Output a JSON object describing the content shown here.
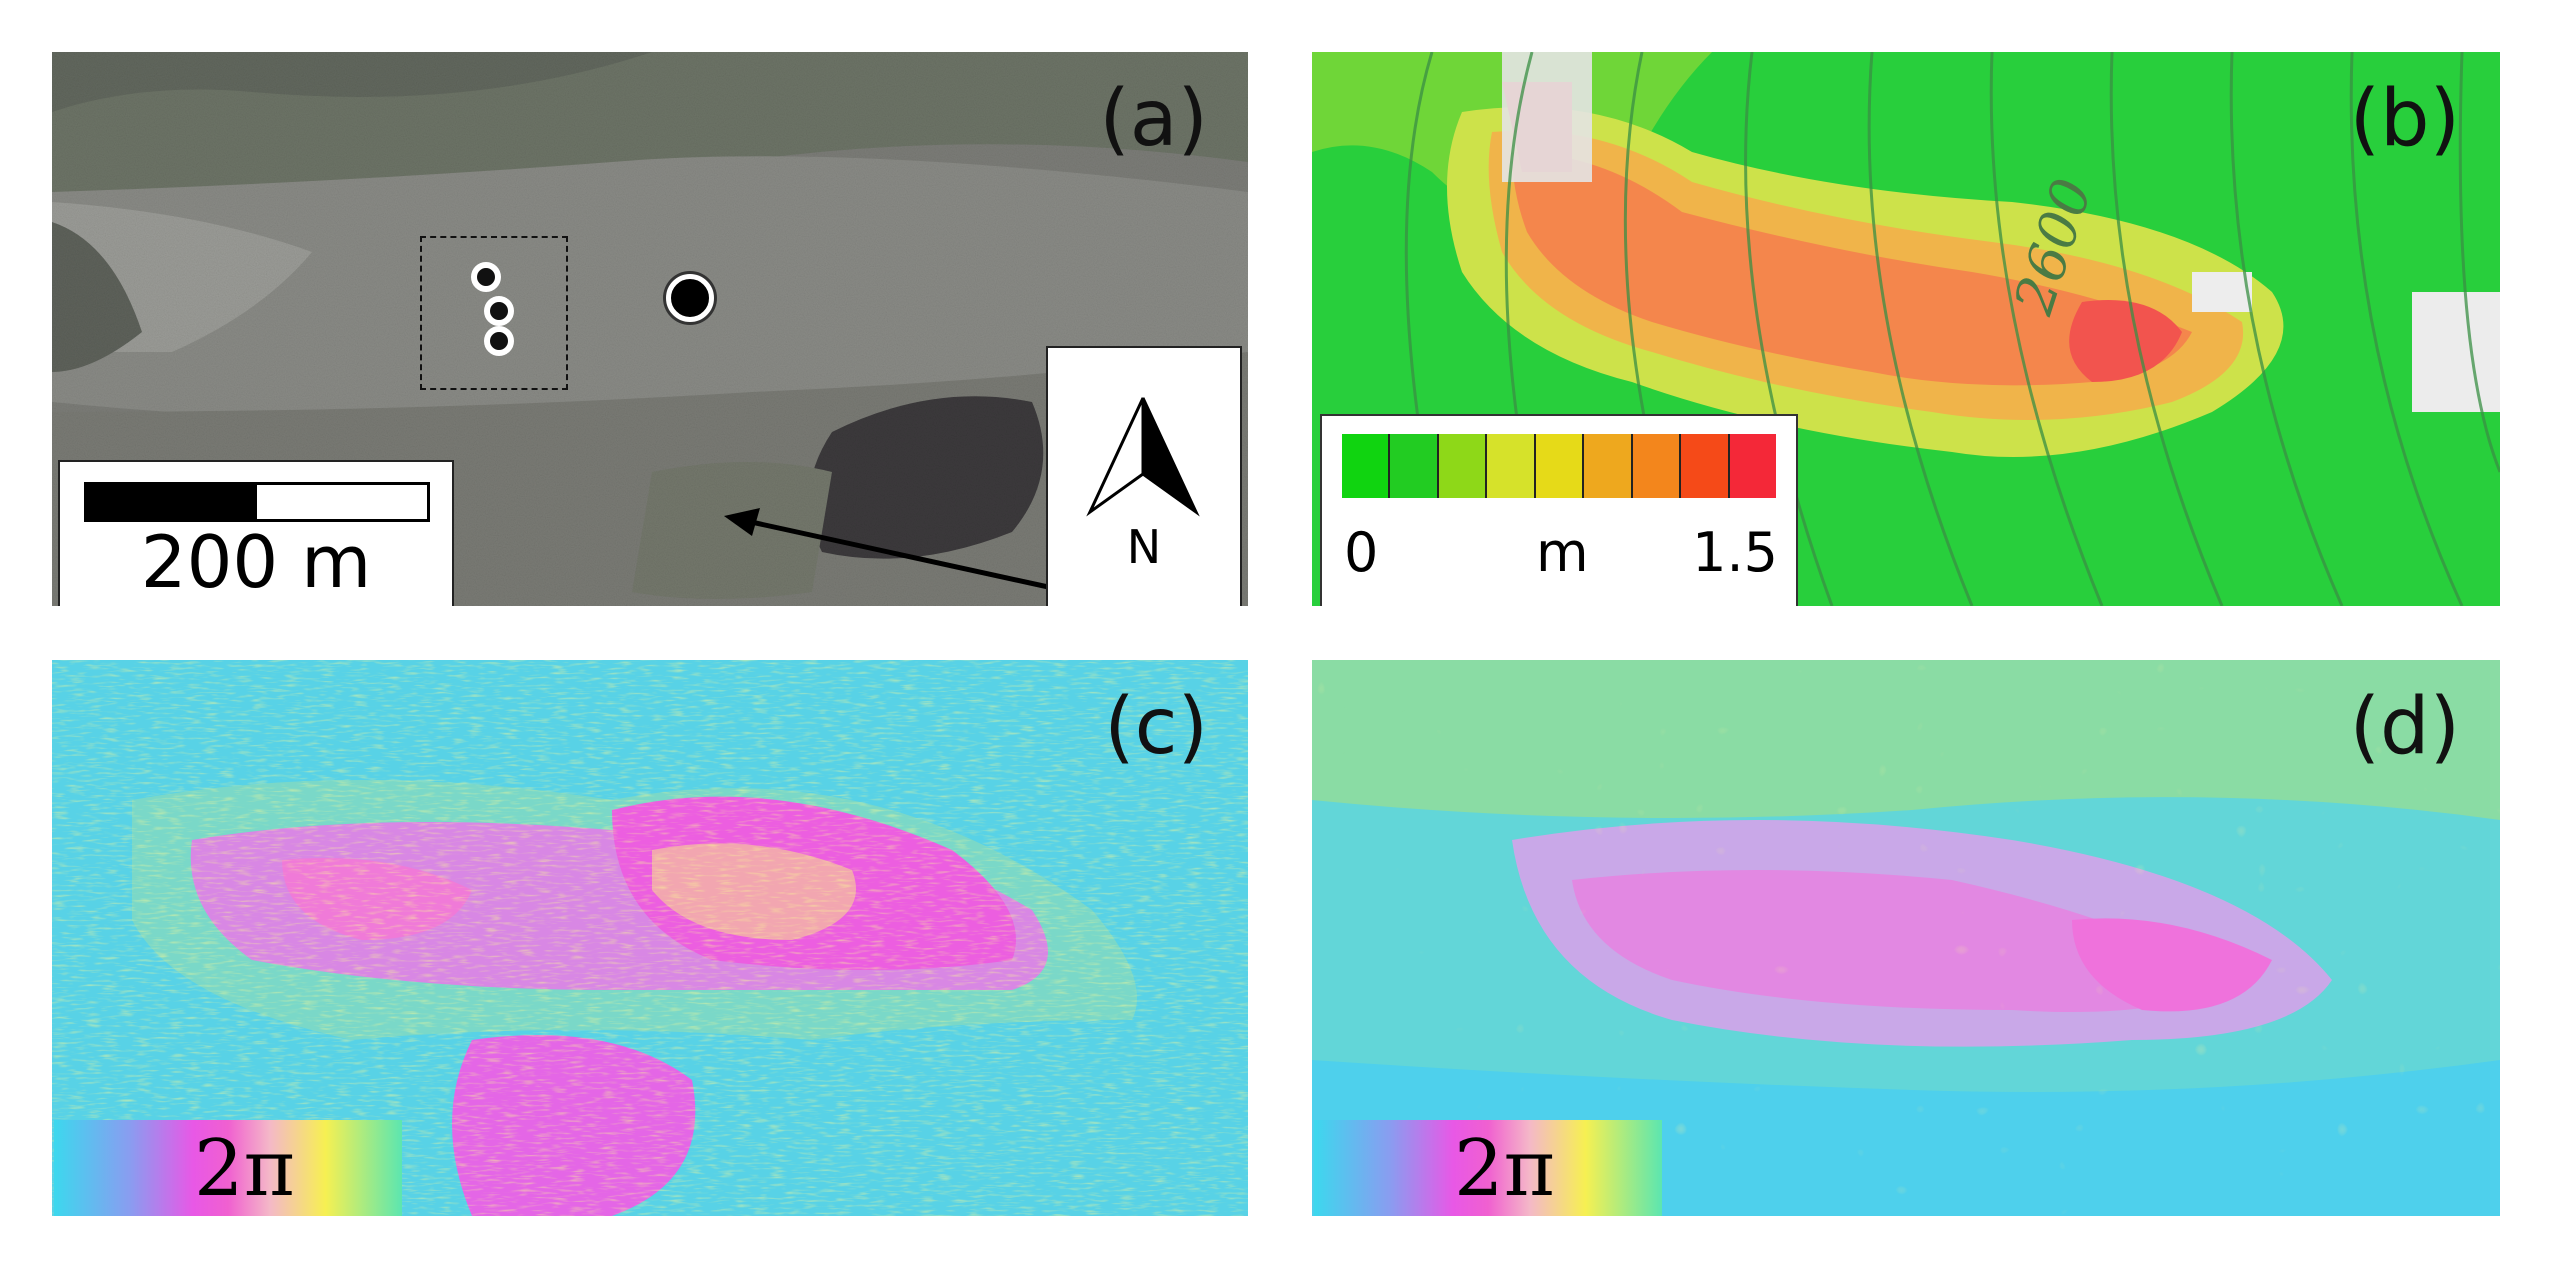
{
  "panels": {
    "a": {
      "label": "(a)",
      "scale_bar_text": "200 m",
      "north_label": "N"
    },
    "b": {
      "label": "(b)",
      "contour_label": "2600",
      "legend": {
        "min": "0",
        "unit": "m",
        "max": "1.5",
        "colors": [
          "#10d410",
          "#22cc22",
          "#8ed818",
          "#d6e22a",
          "#e6da18",
          "#eea81e",
          "#f3861c",
          "#f54a18",
          "#f42838"
        ]
      }
    },
    "c": {
      "label": "(c)",
      "cycle_label": "2π"
    },
    "d": {
      "label": "(d)",
      "cycle_label": "2π"
    }
  }
}
